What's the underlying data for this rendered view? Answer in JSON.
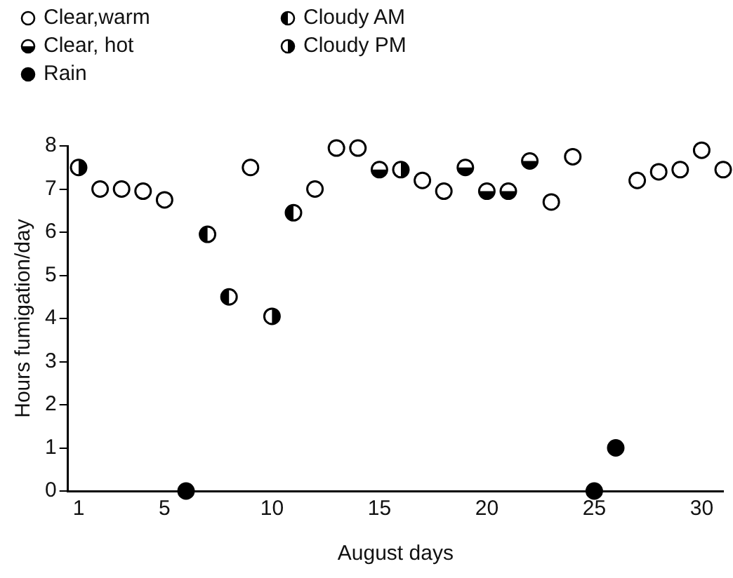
{
  "chart_data": {
    "type": "scatter",
    "xlabel": "August days",
    "ylabel": "Hours fumigation/day",
    "xlim": [
      0.5,
      31
    ],
    "xticks": [
      1,
      5,
      10,
      15,
      20,
      25,
      30
    ],
    "ylim": [
      0,
      8
    ],
    "yticks": [
      0,
      1,
      2,
      3,
      4,
      5,
      6,
      7,
      8
    ],
    "grid": false,
    "legend": "top left",
    "marker": "circle",
    "series": [
      {
        "name": "Clear,warm",
        "color": "#000000",
        "x": [
          2,
          3,
          4,
          5,
          9,
          12,
          13,
          14,
          17,
          18,
          23,
          24,
          27,
          28,
          29,
          30,
          31
        ],
        "values": [
          7.0,
          7.0,
          6.95,
          6.75,
          7.5,
          7.0,
          7.95,
          7.95,
          7.2,
          6.95,
          6.7,
          7.75,
          7.2,
          7.4,
          7.45,
          7.9,
          7.45
        ]
      },
      {
        "name": "Cloudy AM",
        "color": "#000000",
        "x": [
          7,
          8,
          11
        ],
        "values": [
          5.95,
          4.5,
          6.45
        ]
      },
      {
        "name": "Clear, hot",
        "color": "#000000",
        "x": [
          15,
          19,
          20,
          21,
          22
        ],
        "values": [
          7.45,
          7.5,
          6.95,
          6.95,
          7.65
        ]
      },
      {
        "name": "Cloudy PM",
        "color": "#000000",
        "x": [
          1,
          10,
          16
        ],
        "values": [
          7.5,
          4.05,
          7.45
        ]
      },
      {
        "name": "Rain",
        "color": "#000000",
        "x": [
          6,
          25,
          26
        ],
        "values": [
          0,
          0,
          1.0
        ]
      }
    ]
  }
}
